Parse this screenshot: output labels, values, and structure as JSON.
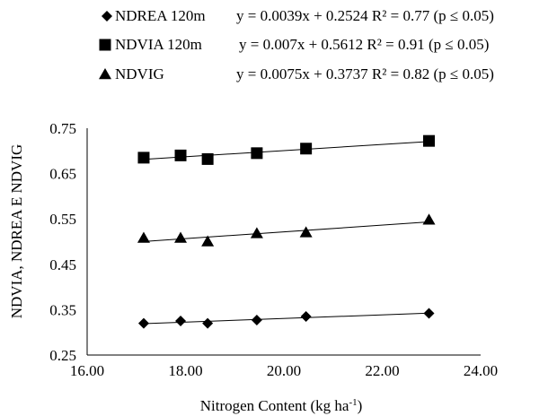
{
  "chart_data": {
    "type": "scatter",
    "xlabel": "Nitrogen Content (kg  ha",
    "xlabel_superscript": "-1",
    "xlabel_suffix": ")",
    "ylabel": "NDVIA, NDREA E NDVIG",
    "xlim": [
      16.0,
      24.0
    ],
    "ylim": [
      0.25,
      0.75
    ],
    "x_ticks": [
      "16.00",
      "18.00",
      "20.00",
      "22.00",
      "24.00"
    ],
    "y_ticks": [
      "0.25",
      "0.35",
      "0.45",
      "0.55",
      "0.65",
      "0.75"
    ],
    "grid": false,
    "legend_position": "top",
    "series": [
      {
        "name": "NDREA 120m",
        "marker": "diamond",
        "equation": "y = 0.0039x + 0.2524 R² = 0.77  (p ≤ 0.05)",
        "slope": 0.0039,
        "intercept": 0.2524,
        "x": [
          17.15,
          17.9,
          18.45,
          19.45,
          20.45,
          22.95
        ],
        "y": [
          0.32,
          0.325,
          0.32,
          0.327,
          0.335,
          0.342
        ]
      },
      {
        "name": "NDVIA 120m",
        "marker": "square",
        "equation": "y = 0.007x + 0.5612   R² = 0.91  (p ≤ 0.05)",
        "slope": 0.007,
        "intercept": 0.5612,
        "x": [
          17.15,
          17.9,
          18.45,
          19.45,
          20.45,
          22.95
        ],
        "y": [
          0.685,
          0.69,
          0.682,
          0.695,
          0.705,
          0.722
        ]
      },
      {
        "name": "NDVIG",
        "marker": "triangle",
        "equation": "y = 0.0075x + 0.3737 R² = 0.82  (p ≤ 0.05)",
        "slope": 0.0075,
        "intercept": 0.3737,
        "x": [
          17.15,
          17.9,
          18.45,
          19.45,
          20.45,
          22.95
        ],
        "y": [
          0.508,
          0.508,
          0.5,
          0.518,
          0.52,
          0.548
        ]
      }
    ],
    "colors": {
      "marker": "#000000",
      "axis": "#000000"
    }
  }
}
